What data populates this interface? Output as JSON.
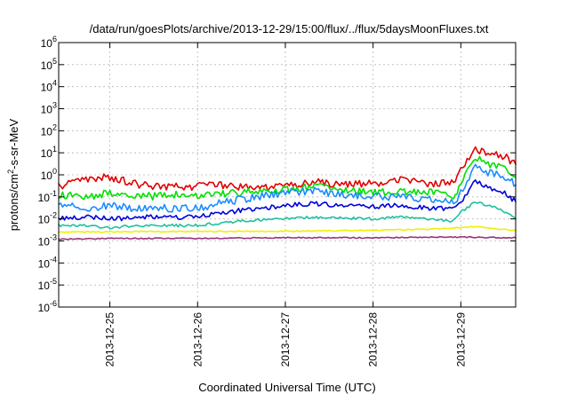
{
  "chart_data": {
    "type": "line",
    "title": "/data/run/goesPlots/archive/2013-12-29/15:00/flux/../flux/5daysMoonFluxes.txt",
    "xlabel": "Coordinated Universal Time (UTC)",
    "ylabel_parts": {
      "before": "protons/cm",
      "sup": "2",
      "after": "-s-sr-MeV"
    },
    "x_range_days": [
      2013.1224,
      2013.12296
    ],
    "x_start": "2013-12-24 10:00",
    "x_end": "2013-12-29 15:00",
    "log_y": true,
    "ylim": [
      1e-06,
      1000000.0
    ],
    "grid": true,
    "y_ticks": [
      {
        "exp": -6,
        "label_base": "10",
        "label_sup": "-6"
      },
      {
        "exp": -5,
        "label_base": "10",
        "label_sup": "-5"
      },
      {
        "exp": -4,
        "label_base": "10",
        "label_sup": "-4"
      },
      {
        "exp": -3,
        "label_base": "10",
        "label_sup": "-3"
      },
      {
        "exp": -2,
        "label_base": "10",
        "label_sup": "-2"
      },
      {
        "exp": -1,
        "label_base": "10",
        "label_sup": "-1"
      },
      {
        "exp": 0,
        "label_base": "10",
        "label_sup": "0"
      },
      {
        "exp": 1,
        "label_base": "10",
        "label_sup": "1"
      },
      {
        "exp": 2,
        "label_base": "10",
        "label_sup": "2"
      },
      {
        "exp": 3,
        "label_base": "10",
        "label_sup": "3"
      },
      {
        "exp": 4,
        "label_base": "10",
        "label_sup": "4"
      },
      {
        "exp": 5,
        "label_base": "10",
        "label_sup": "5"
      },
      {
        "exp": 6,
        "label_base": "10",
        "label_sup": "6"
      }
    ],
    "x_ticks": [
      {
        "t": "2013-12-25 00:00",
        "label": "2013-12-25"
      },
      {
        "t": "2013-12-26 00:00",
        "label": "2013-12-26"
      },
      {
        "t": "2013-12-27 00:00",
        "label": "2013-12-27"
      },
      {
        "t": "2013-12-28 00:00",
        "label": "2013-12-28"
      },
      {
        "t": "2013-12-29 00:00",
        "label": "2013-12-29"
      }
    ],
    "series": [
      {
        "color": "#e00000",
        "x": [
          "2013-12-24 10:00",
          "2013-12-24 18:00",
          "2013-12-25 00:00",
          "2013-12-25 08:00",
          "2013-12-25 16:00",
          "2013-12-26 00:00",
          "2013-12-26 08:00",
          "2013-12-26 16:00",
          "2013-12-27 00:00",
          "2013-12-27 08:00",
          "2013-12-27 16:00",
          "2013-12-28 00:00",
          "2013-12-28 08:00",
          "2013-12-28 16:00",
          "2013-12-28 22:00",
          "2013-12-29 00:00",
          "2013-12-29 04:00",
          "2013-12-29 08:00",
          "2013-12-29 12:00",
          "2013-12-29 15:00"
        ],
        "y": [
          0.3,
          0.6,
          0.8,
          0.35,
          0.3,
          0.3,
          0.35,
          0.25,
          0.3,
          0.5,
          0.35,
          0.4,
          0.6,
          0.35,
          0.5,
          1.5,
          14,
          10,
          7,
          3
        ]
      },
      {
        "color": "#00e000",
        "x": [
          "2013-12-24 10:00",
          "2013-12-24 18:00",
          "2013-12-25 00:00",
          "2013-12-25 08:00",
          "2013-12-25 16:00",
          "2013-12-26 00:00",
          "2013-12-26 08:00",
          "2013-12-26 16:00",
          "2013-12-27 00:00",
          "2013-12-27 08:00",
          "2013-12-27 16:00",
          "2013-12-28 00:00",
          "2013-12-28 08:00",
          "2013-12-28 16:00",
          "2013-12-28 22:00",
          "2013-12-29 00:00",
          "2013-12-29 04:00",
          "2013-12-29 08:00",
          "2013-12-29 12:00",
          "2013-12-29 15:00"
        ],
        "y": [
          0.12,
          0.1,
          0.15,
          0.1,
          0.12,
          0.12,
          0.15,
          0.18,
          0.2,
          0.3,
          0.2,
          0.15,
          0.18,
          0.15,
          0.1,
          0.4,
          6,
          3,
          2,
          0.8
        ]
      },
      {
        "color": "#1a8cff",
        "x": [
          "2013-12-24 10:00",
          "2013-12-24 18:00",
          "2013-12-25 00:00",
          "2013-12-25 08:00",
          "2013-12-25 16:00",
          "2013-12-26 00:00",
          "2013-12-26 08:00",
          "2013-12-26 16:00",
          "2013-12-27 00:00",
          "2013-12-27 08:00",
          "2013-12-27 16:00",
          "2013-12-28 00:00",
          "2013-12-28 08:00",
          "2013-12-28 16:00",
          "2013-12-28 22:00",
          "2013-12-29 00:00",
          "2013-12-29 04:00",
          "2013-12-29 08:00",
          "2013-12-29 12:00",
          "2013-12-29 15:00"
        ],
        "y": [
          0.05,
          0.03,
          0.04,
          0.03,
          0.03,
          0.03,
          0.06,
          0.1,
          0.15,
          0.2,
          0.12,
          0.1,
          0.1,
          0.08,
          0.05,
          0.15,
          2.5,
          1.2,
          0.8,
          0.35
        ]
      },
      {
        "color": "#0000dd",
        "x": [
          "2013-12-24 10:00",
          "2013-12-24 18:00",
          "2013-12-25 00:00",
          "2013-12-25 08:00",
          "2013-12-25 16:00",
          "2013-12-26 00:00",
          "2013-12-26 08:00",
          "2013-12-26 16:00",
          "2013-12-27 00:00",
          "2013-12-27 08:00",
          "2013-12-27 16:00",
          "2013-12-28 00:00",
          "2013-12-28 08:00",
          "2013-12-28 16:00",
          "2013-12-28 22:00",
          "2013-12-29 00:00",
          "2013-12-29 04:00",
          "2013-12-29 08:00",
          "2013-12-29 12:00",
          "2013-12-29 15:00"
        ],
        "y": [
          0.01,
          0.012,
          0.01,
          0.012,
          0.012,
          0.012,
          0.02,
          0.03,
          0.04,
          0.05,
          0.04,
          0.035,
          0.04,
          0.03,
          0.03,
          0.06,
          0.5,
          0.25,
          0.15,
          0.06
        ]
      },
      {
        "color": "#20c0a0",
        "x": [
          "2013-12-24 10:00",
          "2013-12-24 18:00",
          "2013-12-25 00:00",
          "2013-12-25 08:00",
          "2013-12-25 16:00",
          "2013-12-26 00:00",
          "2013-12-26 08:00",
          "2013-12-26 16:00",
          "2013-12-27 00:00",
          "2013-12-27 08:00",
          "2013-12-27 16:00",
          "2013-12-28 00:00",
          "2013-12-28 08:00",
          "2013-12-28 16:00",
          "2013-12-28 22:00",
          "2013-12-29 00:00",
          "2013-12-29 04:00",
          "2013-12-29 08:00",
          "2013-12-29 12:00",
          "2013-12-29 15:00"
        ],
        "y": [
          0.005,
          0.005,
          0.004,
          0.005,
          0.005,
          0.005,
          0.007,
          0.009,
          0.01,
          0.012,
          0.011,
          0.01,
          0.012,
          0.01,
          0.008,
          0.02,
          0.06,
          0.04,
          0.02,
          0.01
        ]
      },
      {
        "color": "#f0f000",
        "x": [
          "2013-12-24 10:00",
          "2013-12-25 00:00",
          "2013-12-26 00:00",
          "2013-12-27 00:00",
          "2013-12-28 00:00",
          "2013-12-28 18:00",
          "2013-12-29 00:00",
          "2013-12-29 04:00",
          "2013-12-29 10:00",
          "2013-12-29 15:00"
        ],
        "y": [
          0.0025,
          0.0026,
          0.0027,
          0.0028,
          0.003,
          0.0035,
          0.004,
          0.0045,
          0.0035,
          0.003
        ]
      },
      {
        "color": "#993377",
        "x": [
          "2013-12-24 10:00",
          "2013-12-25 00:00",
          "2013-12-26 00:00",
          "2013-12-27 00:00",
          "2013-12-28 00:00",
          "2013-12-29 00:00",
          "2013-12-29 15:00"
        ],
        "y": [
          0.0012,
          0.0013,
          0.0013,
          0.0014,
          0.0014,
          0.0015,
          0.0014
        ]
      }
    ]
  }
}
